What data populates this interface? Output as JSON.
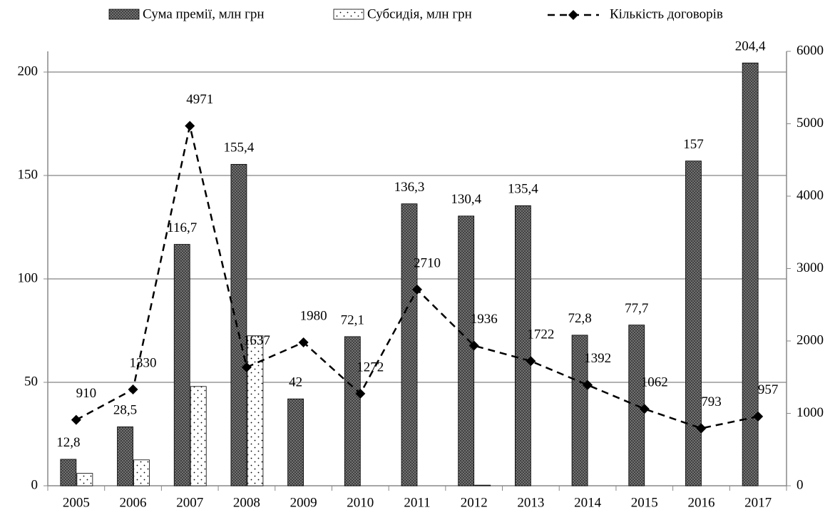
{
  "chart_data": {
    "type": "bar-line",
    "categories": [
      "2005",
      "2006",
      "2007",
      "2008",
      "2009",
      "2010",
      "2011",
      "2012",
      "2013",
      "2014",
      "2015",
      "2016",
      "2017"
    ],
    "series": [
      {
        "name": "Сума премії, млн грн",
        "color": "#7f7f7f",
        "type": "bar",
        "values": [
          12.8,
          28.5,
          116.7,
          155.4,
          42,
          72.1,
          136.3,
          130.4,
          135.4,
          72.8,
          77.7,
          157,
          204.4
        ],
        "value_labels": [
          "12,8",
          "28,5",
          "116,7",
          "155,4",
          "42",
          "72,1",
          "136,3",
          "130,4",
          "135,4",
          "72,8",
          "77,7",
          "157",
          "204,4"
        ]
      },
      {
        "name": "Субсидія, млн грн",
        "color": "#ffffff",
        "type": "bar",
        "values": [
          6,
          12.5,
          48,
          72.5,
          null,
          null,
          null,
          0.3,
          null,
          null,
          null,
          null,
          null
        ]
      },
      {
        "name": "Кількість договорів",
        "color": "#000000",
        "type": "line",
        "axis": "y2",
        "values": [
          910,
          1330,
          4971,
          1637,
          1980,
          1272,
          2710,
          1936,
          1722,
          1392,
          1062,
          793,
          957
        ],
        "value_labels": [
          910,
          1330,
          4971,
          1637,
          1980,
          1272,
          2710,
          1936,
          1722,
          1392,
          1062,
          793,
          957
        ]
      }
    ],
    "ylim": [
      0,
      210
    ],
    "yticks": [
      0,
      50,
      100,
      150,
      200
    ],
    "y2lim": [
      0,
      6000
    ],
    "y2ticks": [
      0,
      1000,
      2000,
      3000,
      4000,
      5000,
      6000
    ],
    "grid": true,
    "legend": "top"
  }
}
